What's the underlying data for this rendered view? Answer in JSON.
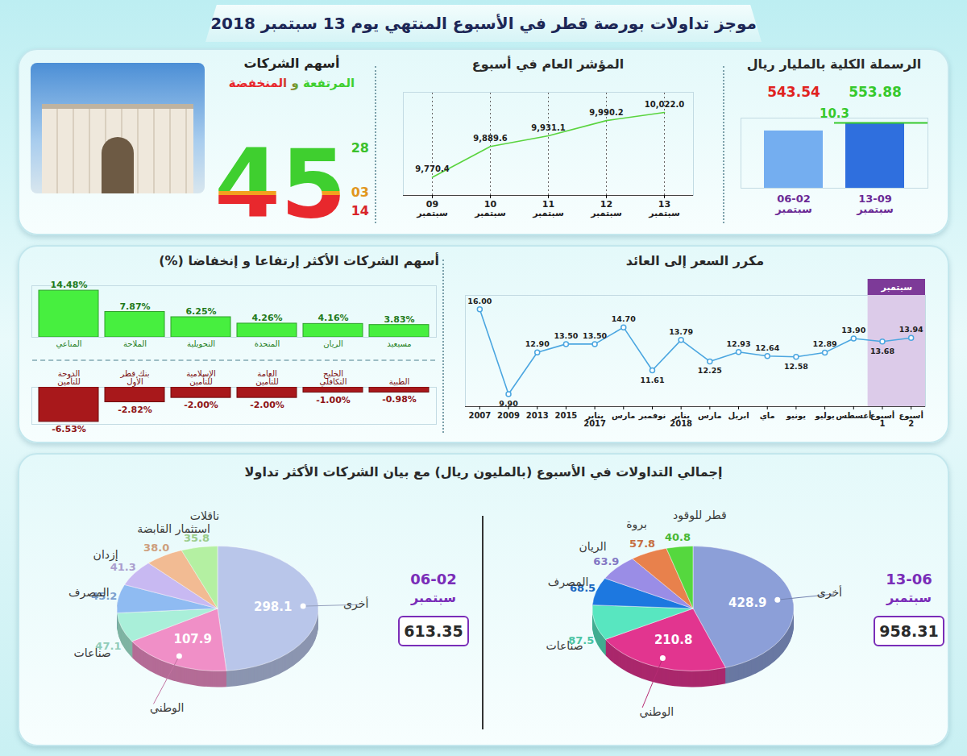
{
  "title": "موجز تداولات بورصة قطر في الأسبوع المنتهي يوم 13 سبتمبر 2018",
  "pies_title": "إجمالي التداولات في الأسبوع (بالمليون ريال) مع بيان الشركات الأكثر تداولا",
  "chart_data": [
    {
      "type": "bar",
      "title": "الرسملة الكلية بالمليار ريال",
      "categories": [
        "06-02 سبتمبر",
        "13-09 سبتمبر"
      ],
      "values": [
        543.54,
        553.88
      ],
      "colors": [
        "#74aef0",
        "#2f6fde"
      ],
      "difference": 10.3,
      "data_labels": true,
      "ylim": [
        470,
        560
      ],
      "yticks": [],
      "tick_labels": "x"
    },
    {
      "type": "line",
      "title": "المؤشر العام في أسبوع",
      "categories": [
        "09 سبتمبر",
        "10 سبتمبر",
        "11 سبتمبر",
        "12 سبتمبر",
        "13 سبتمبر"
      ],
      "values": [
        9770.4,
        9889.6,
        9931.1,
        9990.2,
        10022.0
      ],
      "value_labels": [
        "9,770.4",
        "9,889.6",
        "9,931.1",
        "9,990.2",
        "10,022.0"
      ],
      "color": "#5ad43f",
      "data_labels": true,
      "grid": true,
      "ylim": [
        9700,
        10100
      ],
      "yticks": [],
      "tick_labels": "x"
    },
    {
      "type": "count",
      "title": "أسهم الشركات",
      "subtitle": "المرتفعة و المنخفضة",
      "total": 45,
      "values": [
        28,
        3,
        14
      ],
      "value_labels": [
        "28",
        "03",
        "14"
      ],
      "colors": [
        "#3fcf2f",
        "#f2a11f",
        "#e8282d"
      ]
    },
    {
      "type": "bar",
      "title": "أسهم الشركات الأكثر إرتفاعا و إنخفاضا (%)",
      "categories": [
        "المناعي",
        "الملاحة",
        "التحويلية",
        "المتحدة",
        "الريان",
        "مسيعيد"
      ],
      "values": [
        14.48,
        7.87,
        6.25,
        4.26,
        4.16,
        3.83
      ],
      "value_labels": [
        "14.48%",
        "7.87%",
        "6.25%",
        "4.26%",
        "4.16%",
        "3.83%"
      ],
      "color": "#47ef3f",
      "data_labels": true,
      "ylim": [
        0,
        16
      ],
      "yticks": [],
      "tick_labels": "x"
    },
    {
      "type": "bar",
      "categories": [
        "الدوحة للتأمين",
        "بنك قطر الأول",
        "الإسلامية للتأمين",
        "العامة للتأمين",
        "الخليج التكافلي",
        "الطبية"
      ],
      "values": [
        -6.53,
        -2.82,
        -2.0,
        -2.0,
        -1.0,
        -0.98
      ],
      "value_labels": [
        "-6.53%",
        "-2.82%",
        "-2.00%",
        "-2.00%",
        "-1.00%",
        "-0.98%"
      ],
      "color": "#a8181b",
      "data_labels": true,
      "ylim": [
        -7,
        0
      ],
      "yticks": [],
      "tick_labels": "x"
    },
    {
      "type": "line",
      "title": "مكرر السعر إلى العائد",
      "categories": [
        "2007",
        "2009",
        "2013",
        "2015",
        "يناير 2017",
        "مارس",
        "نوفمبر",
        "يناير 2018",
        "مارس",
        "ابريل",
        "ماي",
        "يونيو",
        "يوليو",
        "أغسطس",
        "أسبوع 1",
        "أسبوع 2"
      ],
      "values": [
        16.0,
        9.9,
        12.9,
        13.5,
        13.5,
        14.7,
        11.61,
        13.79,
        12.25,
        12.93,
        12.64,
        12.58,
        12.89,
        13.9,
        13.68,
        13.94
      ],
      "value_labels": [
        "16.00",
        "9.90",
        "12.90",
        "13.50",
        "13.50",
        "14.70",
        "11.61",
        "13.79",
        "12.25",
        "12.93",
        "12.64",
        "12.58",
        "12.89",
        "13.90",
        "13.68",
        "13.94"
      ],
      "color": "#4ba6e0",
      "marker": "circle",
      "data_labels": true,
      "highlight": {
        "label": "سبتمبر",
        "categories": [
          14,
          15
        ]
      },
      "ylim": [
        9,
        17
      ],
      "yticks": [],
      "tick_labels": "x"
    },
    {
      "type": "pie",
      "title": "13-06 سبتمبر",
      "total": 958.31,
      "categories": [
        "أخرى",
        "الوطني",
        "صناعات",
        "المصرف",
        "الريان",
        "بروة",
        "قطر للوقود"
      ],
      "values": [
        428.9,
        210.8,
        87.5,
        68.5,
        63.9,
        57.8,
        40.8
      ],
      "value_labels": [
        "428.9",
        "210.8",
        "87.5",
        "68.5",
        "63.9",
        "57.8",
        "40.8"
      ],
      "colors": [
        "#8c9fd8",
        "#e2358f",
        "#58e6c0",
        "#1d78e0",
        "#9a8de6",
        "#e8814c",
        "#55d83e"
      ],
      "data_labels": true
    },
    {
      "type": "pie",
      "title": "06-02 سبتمبر",
      "total": 613.35,
      "categories": [
        "أخرى",
        "الوطني",
        "صناعات",
        "المصرف",
        "إزدان",
        "استثمار القابضة",
        "ناقلات"
      ],
      "values": [
        298.1,
        107.9,
        47.1,
        45.2,
        41.3,
        38.0,
        35.8
      ],
      "value_labels": [
        "298.1",
        "107.9",
        "47.1",
        "45.2",
        "41.3",
        "38.0",
        "35.8"
      ],
      "colors": [
        "#b9c6ea",
        "#f08fc7",
        "#a9efd9",
        "#8fbbf2",
        "#c8b9f2",
        "#f2bb93",
        "#b4f0a2"
      ],
      "data_labels": true
    }
  ]
}
